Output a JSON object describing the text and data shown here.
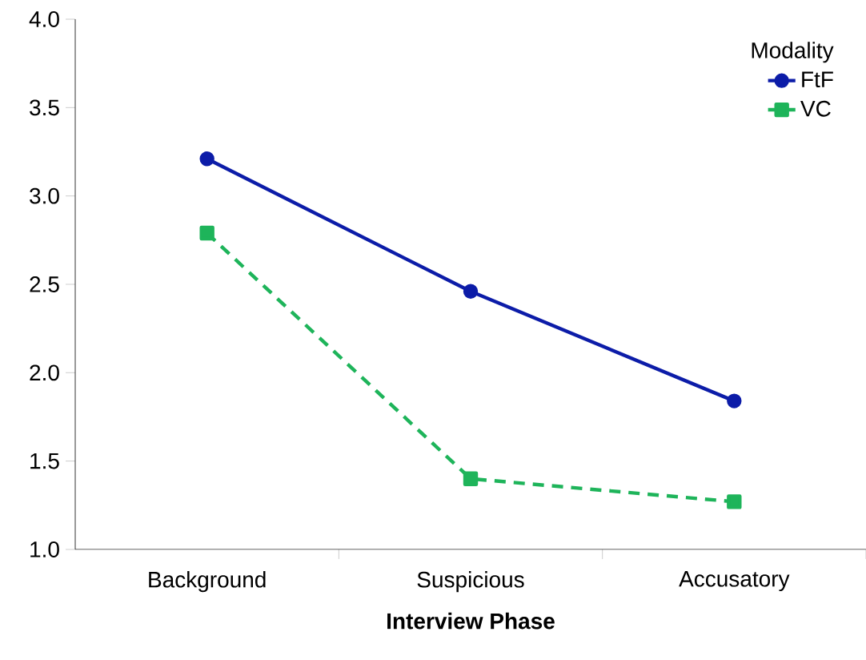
{
  "chart_data": {
    "type": "line",
    "xlabel": "Interview Phase",
    "legend_title": "Modality",
    "legend": "top right",
    "grid": false,
    "categories": [
      "Background",
      "Suspicious",
      "Accusatory"
    ],
    "series": [
      {
        "name": "FtF",
        "color": "#0c1ca8",
        "values": [
          3.21,
          2.46,
          1.84
        ],
        "marker": "circle",
        "line_style": "solid"
      },
      {
        "name": "VC",
        "color": "#1eb45a",
        "values": [
          2.79,
          1.4,
          1.27
        ],
        "marker": "square",
        "line_style": "dashed"
      }
    ],
    "ylim": [
      1,
      4
    ],
    "yticks": [
      {
        "value": 1,
        "label": "1.0"
      },
      {
        "value": 1.5,
        "label": "1.5"
      },
      {
        "value": 2,
        "label": "2.0"
      },
      {
        "value": 2.5,
        "label": "2.5"
      },
      {
        "value": 3,
        "label": "3.0"
      },
      {
        "value": 3.5,
        "label": "3.5"
      },
      {
        "value": 4,
        "label": "4.0"
      }
    ]
  }
}
